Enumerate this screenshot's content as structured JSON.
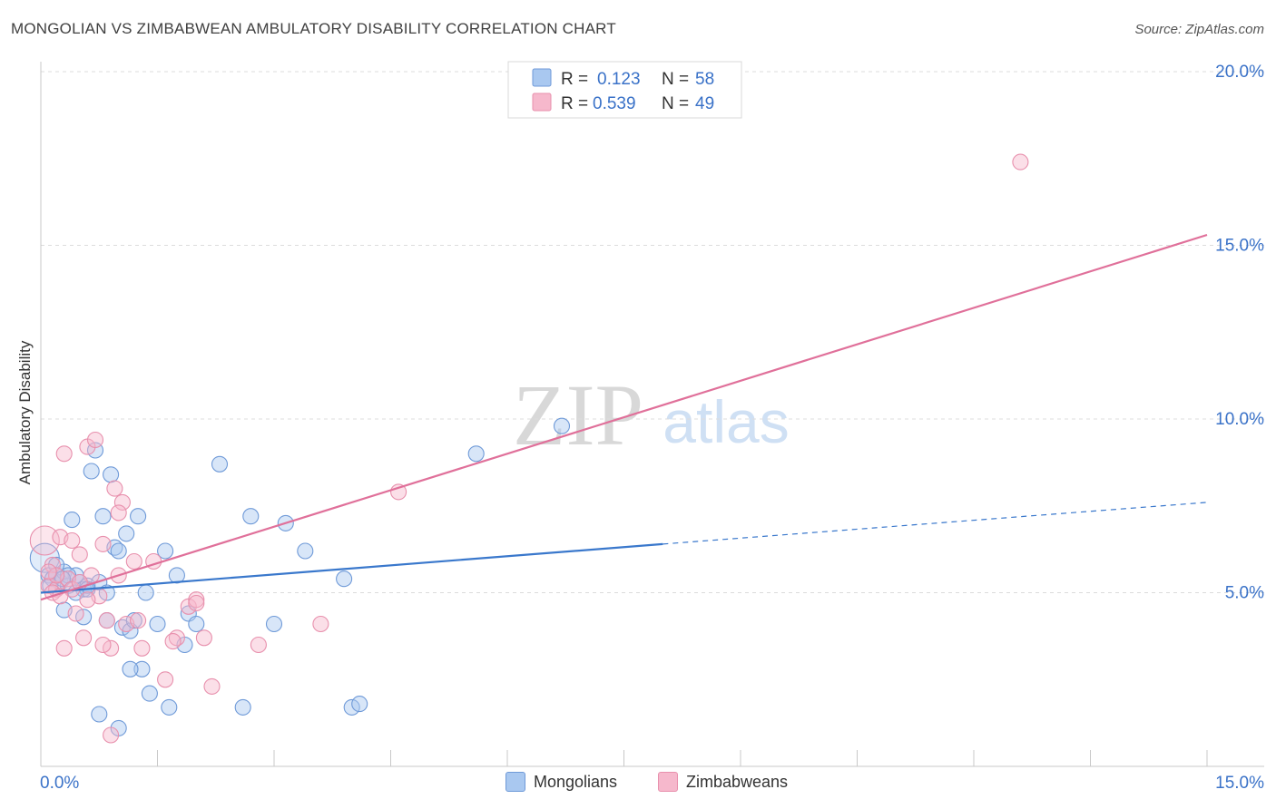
{
  "header": {
    "title": "MONGOLIAN VS ZIMBABWEAN AMBULATORY DISABILITY CORRELATION CHART",
    "source": "Source: ZipAtlas.com"
  },
  "watermark": {
    "zip": "ZIP",
    "atlas": "atlas"
  },
  "colors": {
    "blue_fill": "#a9c8f0",
    "blue_stroke": "#6f9ad8",
    "blue_line": "#3a78cc",
    "pink_fill": "#f6b8cc",
    "pink_stroke": "#e890ad",
    "pink_line": "#e0709a",
    "tick_label": "#3a72c8"
  },
  "chart_data": {
    "type": "scatter",
    "title": "MONGOLIAN VS ZIMBABWEAN AMBULATORY DISABILITY CORRELATION CHART",
    "xlabel": "",
    "ylabel": "Ambulatory Disability",
    "xlim": [
      0,
      15
    ],
    "ylim": [
      0,
      20.5
    ],
    "x_tick_labels": [
      {
        "value": 0,
        "label": "0.0%"
      },
      {
        "value": 15,
        "label": "15.0%"
      }
    ],
    "y_tick_labels": [
      {
        "value": 5,
        "label": "5.0%"
      },
      {
        "value": 10,
        "label": "10.0%"
      },
      {
        "value": 15,
        "label": "15.0%"
      },
      {
        "value": 20,
        "label": "20.0%"
      }
    ],
    "legend_stats": [
      {
        "r_label": "R =",
        "r_value": "0.123",
        "n_label": "N =",
        "n_value": "58"
      },
      {
        "r_label": "R =",
        "r_value": "0.539",
        "n_label": "N =",
        "n_value": "49"
      }
    ],
    "series": [
      {
        "name": "Mongolians",
        "color": "#6f9ad8",
        "trend": {
          "x0": 0,
          "y0": 5.0,
          "x1": 8.0,
          "y1": 6.4,
          "dash_x1": 15,
          "dash_y1": 7.6
        },
        "points": [
          [
            0.05,
            6.0
          ],
          [
            0.1,
            5.5
          ],
          [
            0.15,
            5.4
          ],
          [
            0.2,
            5.5
          ],
          [
            0.25,
            5.3
          ],
          [
            0.3,
            5.6
          ],
          [
            0.35,
            5.2
          ],
          [
            0.4,
            7.1
          ],
          [
            0.45,
            5.5
          ],
          [
            0.5,
            5.3
          ],
          [
            0.55,
            5.1
          ],
          [
            0.6,
            5.2
          ],
          [
            0.65,
            8.5
          ],
          [
            0.7,
            9.1
          ],
          [
            0.75,
            5.3
          ],
          [
            0.8,
            7.2
          ],
          [
            0.85,
            4.2
          ],
          [
            0.9,
            8.4
          ],
          [
            0.95,
            6.3
          ],
          [
            1.0,
            6.2
          ],
          [
            1.05,
            4.0
          ],
          [
            1.1,
            6.7
          ],
          [
            1.15,
            3.9
          ],
          [
            1.2,
            4.2
          ],
          [
            1.25,
            7.2
          ],
          [
            1.3,
            2.8
          ],
          [
            1.35,
            5.0
          ],
          [
            1.4,
            2.1
          ],
          [
            1.5,
            4.1
          ],
          [
            1.6,
            6.2
          ],
          [
            1.65,
            1.7
          ],
          [
            1.75,
            5.5
          ],
          [
            1.85,
            3.5
          ],
          [
            1.9,
            4.4
          ],
          [
            2.0,
            4.1
          ],
          [
            2.3,
            8.7
          ],
          [
            2.6,
            1.7
          ],
          [
            2.7,
            7.2
          ],
          [
            3.0,
            4.1
          ],
          [
            3.15,
            7.0
          ],
          [
            3.4,
            6.2
          ],
          [
            3.9,
            5.4
          ],
          [
            4.0,
            1.7
          ],
          [
            4.1,
            1.8
          ],
          [
            5.6,
            9.0
          ],
          [
            6.7,
            9.8
          ],
          [
            0.3,
            4.5
          ],
          [
            0.55,
            4.3
          ],
          [
            0.75,
            1.5
          ],
          [
            1.0,
            1.1
          ],
          [
            0.2,
            5.8
          ],
          [
            0.35,
            5.5
          ],
          [
            0.6,
            5.1
          ],
          [
            0.85,
            5.0
          ],
          [
            1.15,
            2.8
          ],
          [
            0.45,
            5.0
          ],
          [
            0.12,
            5.2
          ],
          [
            0.28,
            5.4
          ]
        ]
      },
      {
        "name": "Zimbabweans",
        "color": "#e890ad",
        "trend": {
          "x0": 0,
          "y0": 4.8,
          "x1": 15,
          "y1": 15.3
        },
        "points": [
          [
            0.05,
            6.5
          ],
          [
            0.1,
            5.2
          ],
          [
            0.15,
            5.8
          ],
          [
            0.2,
            5.1
          ],
          [
            0.25,
            6.6
          ],
          [
            0.3,
            9.0
          ],
          [
            0.35,
            5.4
          ],
          [
            0.4,
            6.5
          ],
          [
            0.45,
            4.4
          ],
          [
            0.5,
            6.1
          ],
          [
            0.55,
            3.7
          ],
          [
            0.6,
            9.2
          ],
          [
            0.65,
            5.5
          ],
          [
            0.7,
            9.4
          ],
          [
            0.75,
            4.9
          ],
          [
            0.8,
            6.4
          ],
          [
            0.85,
            4.2
          ],
          [
            0.9,
            3.4
          ],
          [
            0.95,
            8.0
          ],
          [
            1.0,
            5.5
          ],
          [
            1.05,
            7.6
          ],
          [
            1.1,
            4.1
          ],
          [
            1.2,
            5.9
          ],
          [
            1.3,
            3.4
          ],
          [
            1.45,
            5.9
          ],
          [
            1.6,
            2.5
          ],
          [
            1.75,
            3.7
          ],
          [
            1.9,
            4.6
          ],
          [
            2.0,
            4.8
          ],
          [
            2.1,
            3.7
          ],
          [
            2.2,
            2.3
          ],
          [
            2.8,
            3.5
          ],
          [
            3.6,
            4.1
          ],
          [
            4.6,
            7.9
          ],
          [
            12.6,
            17.4
          ],
          [
            0.2,
            5.5
          ],
          [
            0.4,
            5.1
          ],
          [
            0.6,
            4.8
          ],
          [
            0.8,
            3.5
          ],
          [
            0.3,
            3.4
          ],
          [
            0.15,
            5.0
          ],
          [
            0.25,
            4.9
          ],
          [
            1.0,
            7.3
          ],
          [
            1.7,
            3.6
          ],
          [
            2.0,
            4.7
          ],
          [
            0.9,
            0.9
          ],
          [
            0.1,
            5.6
          ],
          [
            0.5,
            5.3
          ],
          [
            1.25,
            4.2
          ]
        ]
      }
    ]
  }
}
